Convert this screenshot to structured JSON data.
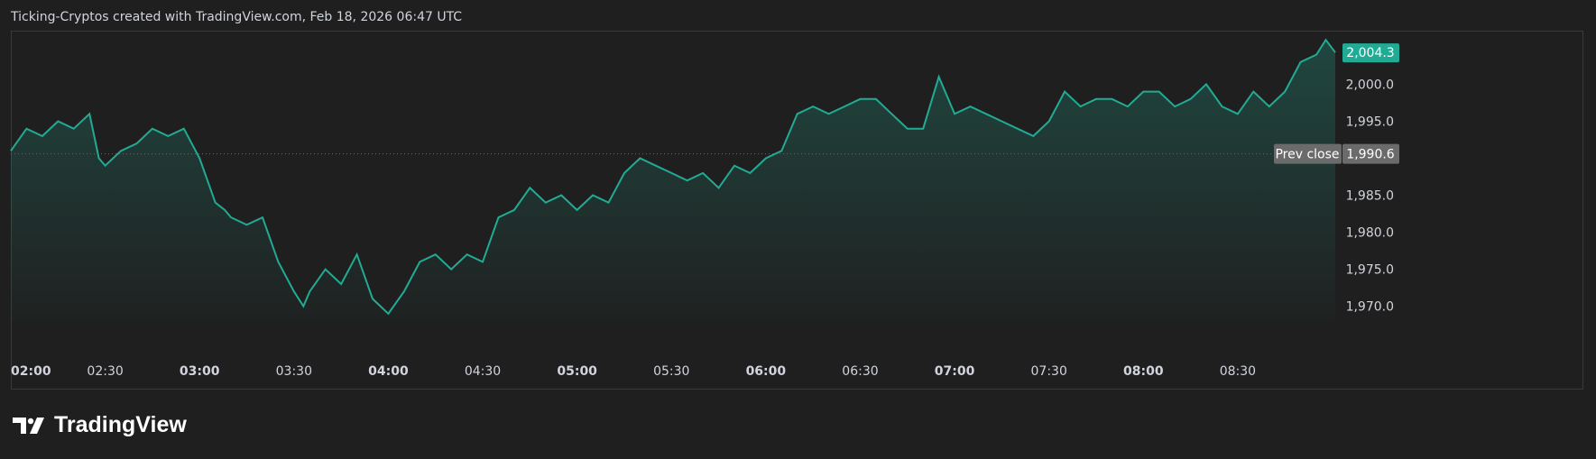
{
  "header": {
    "text": "Ticking-Cryptos created with TradingView.com, Feb 18, 2026 06:47 UTC"
  },
  "brand": {
    "name": "TradingView"
  },
  "colors": {
    "line": "#22ab94",
    "background": "#1f1f1f",
    "badge": "#22ab94",
    "prev_close_badge": "#6b6b6b"
  },
  "chart_data": {
    "type": "area",
    "x_ticks": [
      {
        "label": "02:00",
        "bold": true
      },
      {
        "label": "02:30",
        "bold": false
      },
      {
        "label": "03:00",
        "bold": true
      },
      {
        "label": "03:30",
        "bold": false
      },
      {
        "label": "04:00",
        "bold": true
      },
      {
        "label": "04:30",
        "bold": false
      },
      {
        "label": "05:00",
        "bold": true
      },
      {
        "label": "05:30",
        "bold": false
      },
      {
        "label": "06:00",
        "bold": true
      },
      {
        "label": "06:30",
        "bold": false
      },
      {
        "label": "07:00",
        "bold": true
      },
      {
        "label": "07:30",
        "bold": false
      },
      {
        "label": "08:00",
        "bold": true
      },
      {
        "label": "08:30",
        "bold": false
      }
    ],
    "y_ticks": [
      "2,000.0",
      "1,995.0",
      "1,985.0",
      "1,980.0",
      "1,975.0",
      "1,970.0"
    ],
    "y_tick_values": [
      2000,
      1995,
      1985,
      1980,
      1975,
      1970
    ],
    "ylim": [
      1968,
      2007
    ],
    "x_range_minutes": [
      120,
      541
    ],
    "last_price": {
      "label": "2,004.3",
      "value": 2004.3
    },
    "prev_close": {
      "label": "Prev close",
      "value_label": "1,990.6",
      "value": 1990.6
    },
    "x_minutes": [
      120,
      125,
      130,
      135,
      140,
      145,
      148,
      150,
      155,
      160,
      165,
      170,
      175,
      180,
      185,
      188,
      190,
      195,
      200,
      205,
      210,
      213,
      215,
      220,
      225,
      230,
      235,
      240,
      245,
      250,
      255,
      260,
      265,
      270,
      275,
      280,
      285,
      290,
      295,
      300,
      305,
      310,
      315,
      320,
      325,
      330,
      335,
      340,
      345,
      350,
      355,
      360,
      365,
      370,
      375,
      380,
      385,
      390,
      395,
      400,
      405,
      410,
      415,
      420,
      425,
      430,
      435,
      440,
      445,
      450,
      455,
      460,
      465,
      470,
      475,
      480,
      485,
      490,
      495,
      500,
      505,
      510,
      515,
      520,
      525,
      530,
      535,
      538,
      541
    ],
    "y_values": [
      1991,
      1994,
      1993,
      1995,
      1994,
      1996,
      1990,
      1989,
      1991,
      1992,
      1994,
      1993,
      1994,
      1990,
      1984,
      1983,
      1982,
      1981,
      1982,
      1976,
      1972,
      1970,
      1972,
      1975,
      1973,
      1977,
      1971,
      1969,
      1972,
      1976,
      1977,
      1975,
      1977,
      1976,
      1982,
      1983,
      1986,
      1984,
      1985,
      1983,
      1985,
      1984,
      1988,
      1990,
      1989,
      1988,
      1987,
      1988,
      1986,
      1989,
      1988,
      1990,
      1991,
      1996,
      1997,
      1996,
      1997,
      1998,
      1998,
      1996,
      1994,
      1994,
      2001,
      1996,
      1997,
      1996,
      1995,
      1994,
      1993,
      1995,
      1999,
      1997,
      1998,
      1998,
      1997,
      1999,
      1999,
      1997,
      1998,
      2000,
      1997,
      1996,
      1999,
      1997,
      1999,
      2003,
      2004,
      2006,
      2004.3
    ]
  }
}
